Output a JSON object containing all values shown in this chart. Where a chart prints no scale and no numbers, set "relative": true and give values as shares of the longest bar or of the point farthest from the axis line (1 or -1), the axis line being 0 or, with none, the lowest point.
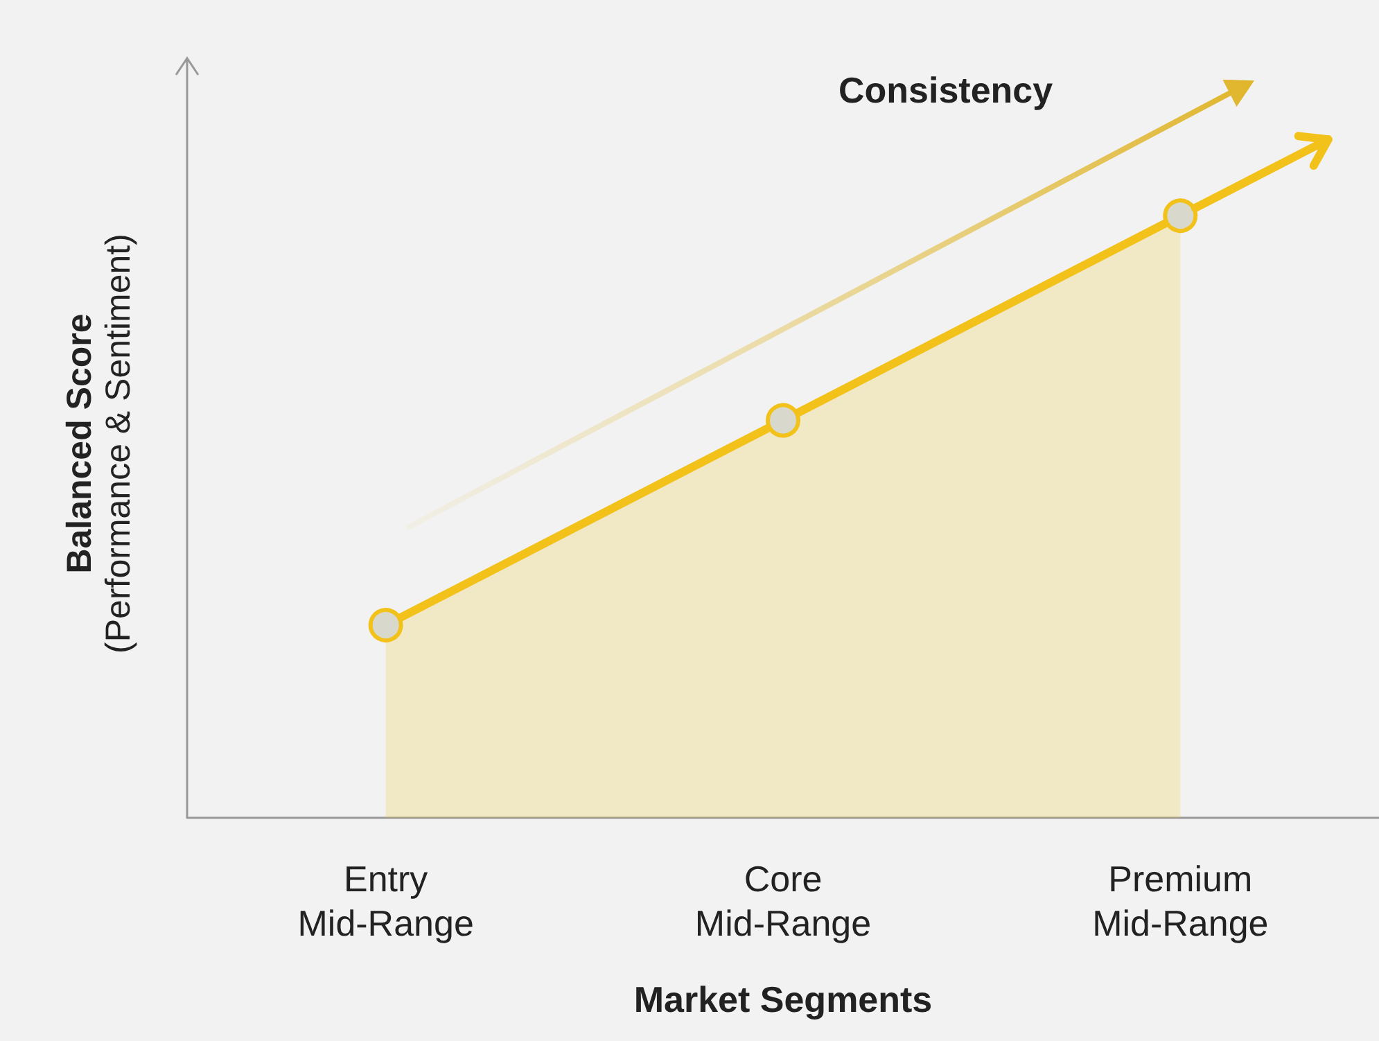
{
  "chart_data": {
    "type": "area",
    "relative": true,
    "xlabel": "Market Segments",
    "ylabel": "Balanced Score\n(Performance & Sentiment)",
    "categories": [
      "Entry\nMid-Range",
      "Core\nMid-Range",
      "Premium\nMid-Range"
    ],
    "series": [
      {
        "color": "#f2c21b",
        "values": [
          0.32,
          0.66,
          1
        ]
      }
    ],
    "annotations": [
      "Consistency"
    ],
    "marker": "circle",
    "line_style": "solid",
    "grid": false
  }
}
